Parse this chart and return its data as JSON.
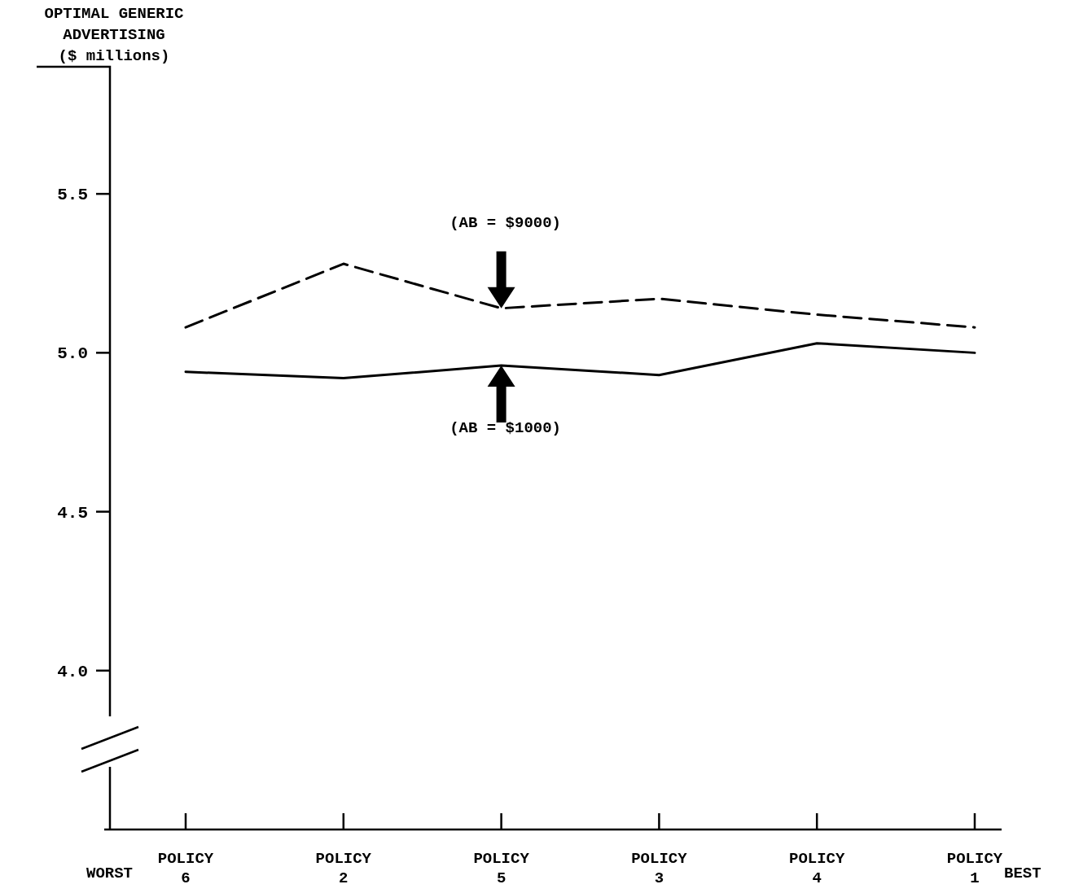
{
  "chart_data": {
    "type": "line",
    "ylabel": "OPTIMAL GENERIC\nADVERTISING\n($ millions)",
    "categories": [
      "POLICY 6",
      "POLICY 2",
      "POLICY 5",
      "POLICY 3",
      "POLICY 4",
      "POLICY 1"
    ],
    "series": [
      {
        "color": "#000000",
        "line_style": "dashed",
        "values": [
          5.08,
          5.28,
          5.14,
          5.17,
          5.12,
          5.08
        ]
      },
      {
        "color": "#000000",
        "line_style": "solid",
        "values": [
          4.94,
          4.92,
          4.96,
          4.93,
          5.03,
          5.0
        ]
      }
    ],
    "ylim": [
      3.5,
      5.9
    ],
    "yticks": [
      {
        "value": 4.0,
        "label": "4.0"
      },
      {
        "value": 4.5,
        "label": "4.5"
      },
      {
        "value": 5.0,
        "label": "5.0"
      },
      {
        "value": 5.5,
        "label": "5.5"
      }
    ],
    "annotations": [
      "WORST",
      "BEST",
      "(AB = $9000)",
      "(AB = $1000)"
    ],
    "grid": false,
    "marker": "none"
  }
}
